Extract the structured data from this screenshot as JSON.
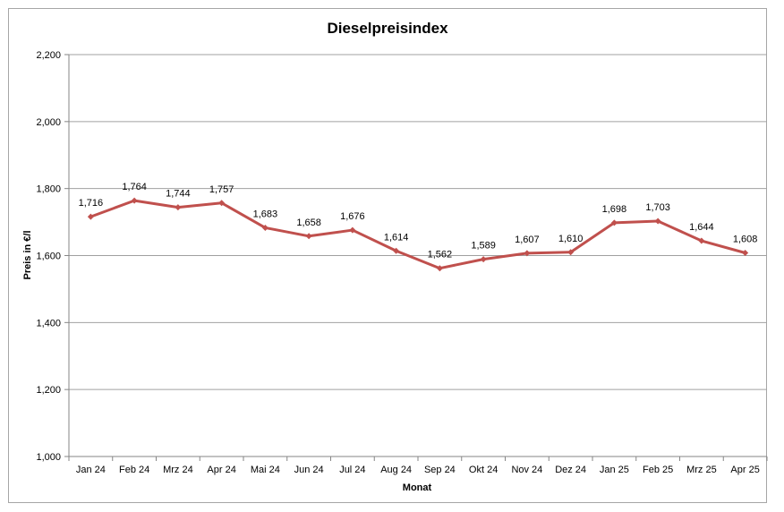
{
  "chart_data": {
    "type": "line",
    "title": "Dieselpreisindex",
    "xlabel": "Monat",
    "ylabel": "Preis in €/l",
    "ylim": [
      1.0,
      2.2
    ],
    "yticks": [
      1.0,
      1.2,
      1.4,
      1.6,
      1.8,
      2.0,
      2.2
    ],
    "ytick_labels": [
      "1,000",
      "1,200",
      "1,400",
      "1,600",
      "1,800",
      "2,000",
      "2,200"
    ],
    "grid": true,
    "legend": "none",
    "categories": [
      "Jan 24",
      "Feb 24",
      "Mrz 24",
      "Apr 24",
      "Mai 24",
      "Jun 24",
      "Jul 24",
      "Aug 24",
      "Sep 24",
      "Okt 24",
      "Nov 24",
      "Dez 24",
      "Jan 25",
      "Feb 25",
      "Mrz 25",
      "Apr 25"
    ],
    "series": [
      {
        "color": "#c0504d",
        "values": [
          1.716,
          1.764,
          1.744,
          1.757,
          1.683,
          1.658,
          1.676,
          1.614,
          1.562,
          1.589,
          1.607,
          1.61,
          1.698,
          1.703,
          1.644,
          1.608
        ],
        "labels": [
          "1,716",
          "1,764",
          "1,744",
          "1,757",
          "1,683",
          "1,658",
          "1,676",
          "1,614",
          "1,562",
          "1,589",
          "1,607",
          "1,610",
          "1,698",
          "1,703",
          "1,644",
          "1,608"
        ]
      }
    ]
  }
}
